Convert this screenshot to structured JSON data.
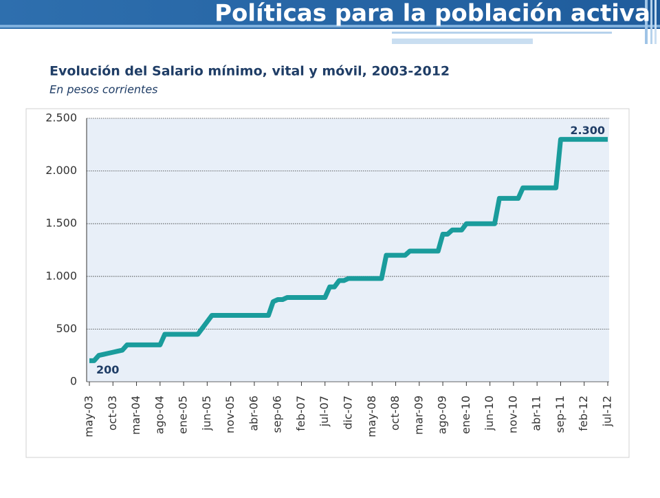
{
  "page_title": "Políticas para la población activa",
  "chart_data": {
    "type": "line",
    "title": "Evolución del Salario mínimo, vital y móvil, 2003-2012",
    "subtitle": "En pesos corrientes",
    "categories": [
      "may-03",
      null,
      null,
      null,
      null,
      "oct-03",
      null,
      null,
      null,
      null,
      "mar-04",
      null,
      null,
      null,
      null,
      "ago-04",
      null,
      null,
      null,
      null,
      "ene-05",
      null,
      null,
      null,
      null,
      "jun-05",
      null,
      null,
      null,
      null,
      "nov-05",
      null,
      null,
      null,
      null,
      "abr-06",
      null,
      null,
      null,
      null,
      "sep-06",
      null,
      null,
      null,
      null,
      "feb-07",
      null,
      null,
      null,
      null,
      "jul-07",
      null,
      null,
      null,
      null,
      "dic-07",
      null,
      null,
      null,
      null,
      "may-08",
      null,
      null,
      null,
      null,
      "oct-08",
      null,
      null,
      null,
      null,
      "mar-09",
      null,
      null,
      null,
      null,
      "ago-09",
      null,
      null,
      null,
      null,
      "ene-10",
      null,
      null,
      null,
      null,
      "jun-10",
      null,
      null,
      null,
      null,
      "nov-10",
      null,
      null,
      null,
      null,
      "abr-11",
      null,
      null,
      null,
      null,
      "sep-11",
      null,
      null,
      null,
      null,
      "feb-12",
      null,
      null,
      null,
      null,
      "jul-12"
    ],
    "values": [
      200,
      200,
      250,
      260,
      270,
      280,
      290,
      300,
      350,
      350,
      350,
      350,
      350,
      350,
      350,
      350,
      450,
      450,
      450,
      450,
      450,
      450,
      450,
      450,
      510,
      570,
      630,
      630,
      630,
      630,
      630,
      630,
      630,
      630,
      630,
      630,
      630,
      630,
      630,
      760,
      780,
      780,
      800,
      800,
      800,
      800,
      800,
      800,
      800,
      800,
      800,
      900,
      900,
      960,
      960,
      980,
      980,
      980,
      980,
      980,
      980,
      980,
      980,
      1200,
      1200,
      1200,
      1200,
      1200,
      1240,
      1240,
      1240,
      1240,
      1240,
      1240,
      1240,
      1400,
      1400,
      1440,
      1440,
      1440,
      1500,
      1500,
      1500,
      1500,
      1500,
      1500,
      1500,
      1740,
      1740,
      1740,
      1740,
      1740,
      1840,
      1840,
      1840,
      1840,
      1840,
      1840,
      1840,
      1840,
      2300,
      2300,
      2300,
      2300,
      2300,
      2300,
      2300,
      2300,
      2300,
      2300,
      2300
    ],
    "value_labels": [
      "200",
      null,
      null,
      null,
      null,
      null,
      null,
      null,
      null,
      null,
      null,
      null,
      null,
      null,
      null,
      null,
      null,
      null,
      null,
      null,
      null,
      null,
      null,
      null,
      null,
      null,
      null,
      null,
      null,
      null,
      null,
      null,
      null,
      null,
      null,
      null,
      null,
      null,
      null,
      null,
      null,
      null,
      null,
      null,
      null,
      null,
      null,
      null,
      null,
      null,
      null,
      null,
      null,
      null,
      null,
      null,
      null,
      null,
      null,
      null,
      null,
      null,
      null,
      null,
      null,
      null,
      null,
      null,
      null,
      null,
      null,
      null,
      null,
      null,
      null,
      null,
      null,
      null,
      null,
      null,
      null,
      null,
      null,
      null,
      null,
      null,
      null,
      null,
      null,
      null,
      null,
      null,
      null,
      null,
      null,
      null,
      null,
      null,
      null,
      null,
      null,
      null,
      null,
      null,
      null,
      null,
      null,
      null,
      null,
      null,
      "2.300"
    ],
    "color": "#1a9c9c",
    "ylim": [
      0,
      2500
    ],
    "yticks": [
      0,
      500,
      {
        "value": 1000,
        "label": "1.000"
      },
      {
        "value": 1500,
        "label": "1.500"
      },
      {
        "value": 2000,
        "label": "2.000"
      },
      {
        "value": 2500,
        "label": "2.500"
      }
    ],
    "grid": true
  }
}
